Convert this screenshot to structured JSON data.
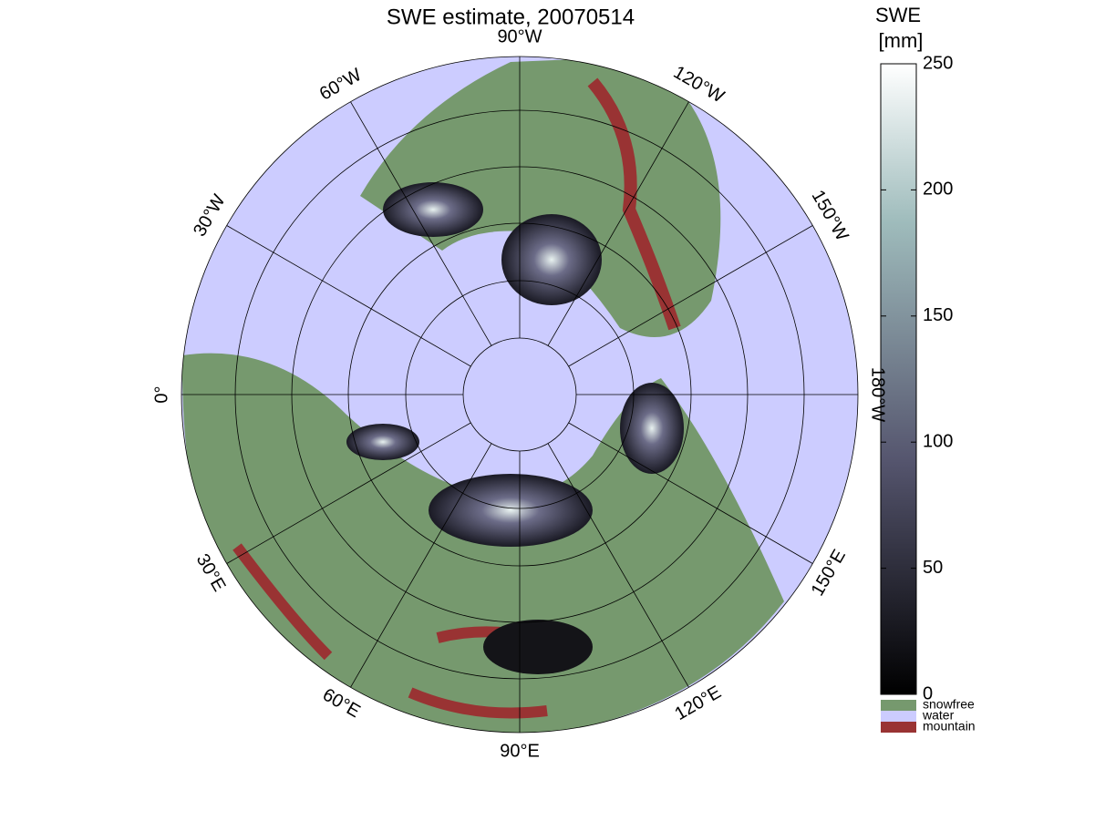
{
  "title": "SWE estimate, 20070514",
  "longitude_labels": [
    "0°",
    "30°E",
    "60°E",
    "90°E",
    "120°E",
    "150°E",
    "180°W",
    "150°W",
    "120°W",
    "90°W",
    "60°W",
    "30°W"
  ],
  "colorbar": {
    "title": [
      "SWE",
      "[mm]"
    ],
    "lim": [
      0,
      250
    ],
    "ticks": [
      0,
      50,
      100,
      150,
      200,
      250
    ]
  },
  "legend": [
    {
      "label": "snowfree",
      "color": "#76996e"
    },
    {
      "label": "water",
      "color": "#ccccff"
    },
    {
      "label": "mountain",
      "color": "#993333"
    }
  ]
}
